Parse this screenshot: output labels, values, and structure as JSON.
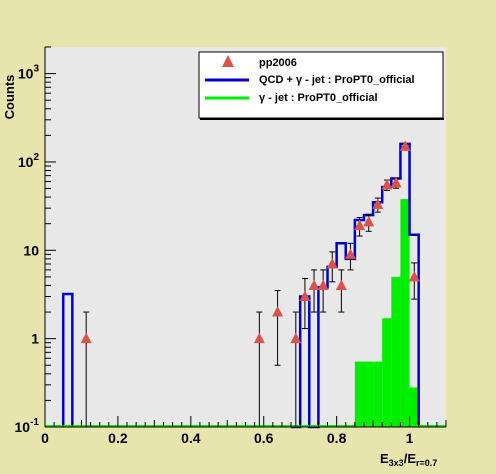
{
  "chart_data": {
    "type": "histogram",
    "xlabel": {
      "main": "E",
      "sub1": "3x3",
      "mid": "/E",
      "sub2": "r=0.7"
    },
    "ylabel": "Counts",
    "x_range": [
      0,
      1.1
    ],
    "y_range": [
      0.1,
      2000
    ],
    "y_scale": "log",
    "x_ticks": [
      0,
      0.2,
      0.4,
      0.6,
      0.8,
      1
    ],
    "y_ticks": [
      {
        "value": 0.1,
        "base": "10",
        "exp": "-1"
      },
      {
        "value": 1,
        "base": "1",
        "exp": ""
      },
      {
        "value": 10,
        "base": "10",
        "exp": ""
      },
      {
        "value": 100,
        "base": "10",
        "exp": "2"
      },
      {
        "value": 1000,
        "base": "10",
        "exp": "3"
      }
    ],
    "bin_width": 0.025,
    "legend": [
      {
        "label": "pp2006",
        "marker": "triangle",
        "color": "#d9534a"
      },
      {
        "label": "QCD + γ - jet : ProPT0_official",
        "marker": "line",
        "color": "#0000cc"
      },
      {
        "label": "γ - jet : ProPT0_official",
        "marker": "line",
        "color": "#00ee00"
      }
    ],
    "legend_position": "top-right",
    "series": [
      {
        "name": "QCD + γ - jet : ProPT0_official",
        "kind": "step-histogram",
        "color": "#0000cc",
        "bins": [
          {
            "lo": 0.05,
            "hi": 0.075,
            "value": 3.2
          },
          {
            "lo": 0.675,
            "hi": 0.7,
            "value": 0.1
          },
          {
            "lo": 0.7,
            "hi": 0.725,
            "value": 3.0
          },
          {
            "lo": 0.725,
            "hi": 0.75,
            "value": 0.1
          },
          {
            "lo": 0.75,
            "hi": 0.775,
            "value": 3.8
          },
          {
            "lo": 0.775,
            "hi": 0.8,
            "value": 6.5
          },
          {
            "lo": 0.8,
            "hi": 0.825,
            "value": 12
          },
          {
            "lo": 0.825,
            "hi": 0.85,
            "value": 8
          },
          {
            "lo": 0.85,
            "hi": 0.875,
            "value": 22
          },
          {
            "lo": 0.875,
            "hi": 0.9,
            "value": 25
          },
          {
            "lo": 0.9,
            "hi": 0.925,
            "value": 35
          },
          {
            "lo": 0.925,
            "hi": 0.95,
            "value": 52
          },
          {
            "lo": 0.95,
            "hi": 0.975,
            "value": 65
          },
          {
            "lo": 0.975,
            "hi": 1.0,
            "value": 160
          },
          {
            "lo": 1.0,
            "hi": 1.025,
            "value": 15
          }
        ]
      },
      {
        "name": "γ - jet : ProPT0_official",
        "kind": "filled-histogram",
        "color": "#00ee00",
        "bins": [
          {
            "lo": 0.85,
            "hi": 0.875,
            "value": 0.55
          },
          {
            "lo": 0.875,
            "hi": 0.9,
            "value": 0.55
          },
          {
            "lo": 0.9,
            "hi": 0.925,
            "value": 0.55
          },
          {
            "lo": 0.925,
            "hi": 0.95,
            "value": 1.7
          },
          {
            "lo": 0.95,
            "hi": 0.975,
            "value": 5.0
          },
          {
            "lo": 0.975,
            "hi": 1.0,
            "value": 38
          },
          {
            "lo": 1.0,
            "hi": 1.025,
            "value": 0.28
          }
        ]
      },
      {
        "name": "pp2006",
        "kind": "points",
        "color": "#d9534a",
        "points": [
          {
            "x": 0.113,
            "y": 1,
            "lo": 0.1,
            "hi": 2
          },
          {
            "x": 0.588,
            "y": 1,
            "lo": 0.1,
            "hi": 2
          },
          {
            "x": 0.638,
            "y": 2,
            "lo": 0.5,
            "hi": 3.5
          },
          {
            "x": 0.688,
            "y": 1,
            "lo": 0.1,
            "hi": 2
          },
          {
            "x": 0.713,
            "y": 3,
            "lo": 1.3,
            "hi": 4.8
          },
          {
            "x": 0.738,
            "y": 4,
            "lo": 2,
            "hi": 6
          },
          {
            "x": 0.763,
            "y": 4,
            "lo": 2,
            "hi": 6
          },
          {
            "x": 0.788,
            "y": 7,
            "lo": 4.4,
            "hi": 9.6
          },
          {
            "x": 0.813,
            "y": 4,
            "lo": 2,
            "hi": 6
          },
          {
            "x": 0.838,
            "y": 9,
            "lo": 6,
            "hi": 12
          },
          {
            "x": 0.863,
            "y": 19,
            "lo": 14.5,
            "hi": 23.5
          },
          {
            "x": 0.888,
            "y": 21,
            "lo": 16.4,
            "hi": 25.6
          },
          {
            "x": 0.913,
            "y": 33,
            "lo": 27,
            "hi": 39
          },
          {
            "x": 0.938,
            "y": 55,
            "lo": 47.6,
            "hi": 62.4
          },
          {
            "x": 0.963,
            "y": 58,
            "lo": 50.4,
            "hi": 65.6
          },
          {
            "x": 0.988,
            "y": 150,
            "lo": 137.8,
            "hi": 162.2
          },
          {
            "x": 1.013,
            "y": 5,
            "lo": 2.8,
            "hi": 7.2
          }
        ]
      }
    ]
  }
}
